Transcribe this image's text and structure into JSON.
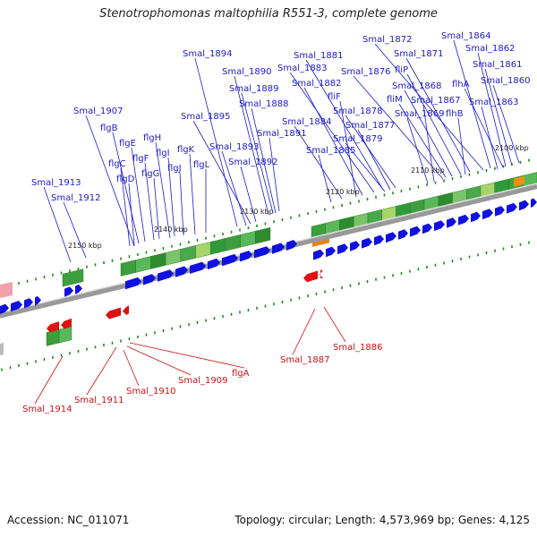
{
  "title": "Stenotrophomonas maltophilia R551-3, complete genome",
  "footer": {
    "accession": "Accession: NC_011071",
    "summary": "Topology: circular; Length: 4,573,969 bp; Genes: 4,125"
  },
  "colors": {
    "forward_gene": "#1010e0",
    "reverse_gene": "#e01010",
    "forward_label": "#1a1acc",
    "reverse_label": "#cc1111",
    "backbone": "#888888",
    "tick": "#1a8a1a"
  },
  "kbp_ticks": [
    "2100 kbp",
    "2110 kbp",
    "2120 kbp",
    "2130 kbp",
    "2140 kbp",
    "2150 kbp"
  ],
  "forward_labels": [
    {
      "text": "Smal_1864"
    },
    {
      "text": "Smal_1872"
    },
    {
      "text": "Smal_1862"
    },
    {
      "text": "Smal_1871"
    },
    {
      "text": "Smal_1861"
    },
    {
      "text": "Smal_1894"
    },
    {
      "text": "Smal_1881"
    },
    {
      "text": "fliP"
    },
    {
      "text": "Smal_1883"
    },
    {
      "text": "Smal_1876"
    },
    {
      "text": "Smal_1890"
    },
    {
      "text": "flhA"
    },
    {
      "text": "Smal_1860"
    },
    {
      "text": "Smal_1882"
    },
    {
      "text": "Smal_1868"
    },
    {
      "text": "Smal_1889"
    },
    {
      "text": "fliF"
    },
    {
      "text": "fliM"
    },
    {
      "text": "Smal_1867"
    },
    {
      "text": "Smal_1863"
    },
    {
      "text": "Smal_1888"
    },
    {
      "text": "Smal_1878"
    },
    {
      "text": "Smal_1869"
    },
    {
      "text": "flhB"
    },
    {
      "text": "Smal_1907"
    },
    {
      "text": "Smal_1895"
    },
    {
      "text": "Smal_1884"
    },
    {
      "text": "Smal_1877"
    },
    {
      "text": "flgB"
    },
    {
      "text": "Smal_1891"
    },
    {
      "text": "flgH"
    },
    {
      "text": "Smal_1879"
    },
    {
      "text": "flgE"
    },
    {
      "text": "Smal_1893"
    },
    {
      "text": "flgK"
    },
    {
      "text": "Smal_1885"
    },
    {
      "text": "flgF"
    },
    {
      "text": "flgI"
    },
    {
      "text": "flgC"
    },
    {
      "text": "Smal_1892"
    },
    {
      "text": "flgL"
    },
    {
      "text": "flgG"
    },
    {
      "text": "flgJ"
    },
    {
      "text": "flgD"
    },
    {
      "text": "Smal_1913"
    },
    {
      "text": "Smal_1912"
    }
  ],
  "reverse_labels": [
    {
      "text": "Smal_1886"
    },
    {
      "text": "Smal_1887"
    },
    {
      "text": "flgA"
    },
    {
      "text": "Smal_1909"
    },
    {
      "text": "Smal_1910"
    },
    {
      "text": "Smal_1911"
    },
    {
      "text": "Smal_1914"
    }
  ]
}
